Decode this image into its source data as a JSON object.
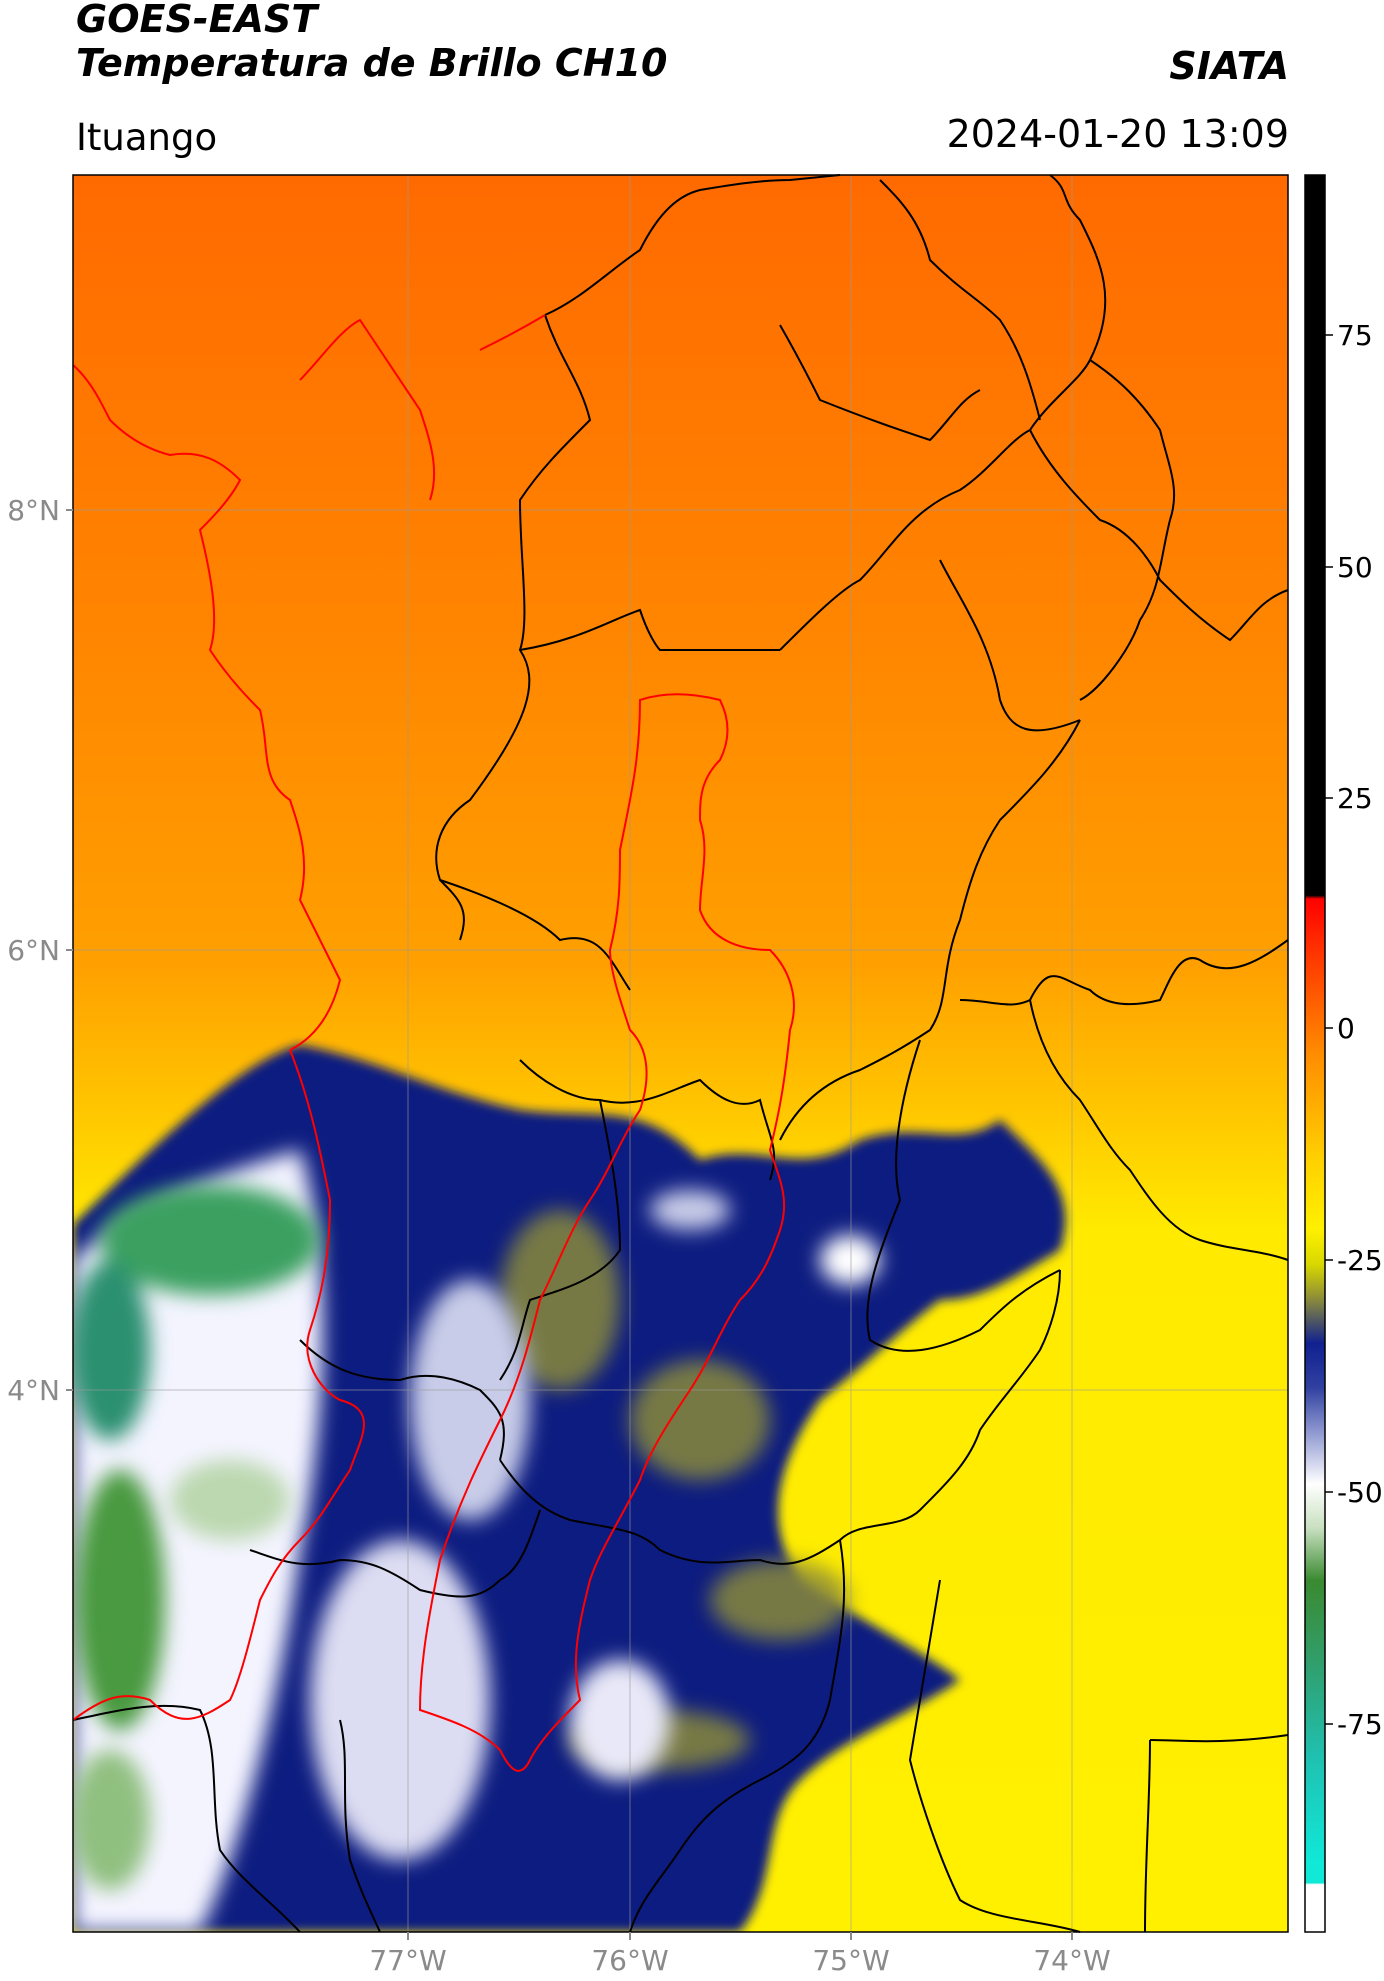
{
  "header": {
    "title_line1": "GOES-EAST",
    "title_line2": "Temperatura de Brillo CH10",
    "agency": "SIATA",
    "region": "Ituango",
    "timestamp": "2024-01-20 13:09"
  },
  "map": {
    "lat_ticks": [
      "8°N",
      "6°N",
      "4°N"
    ],
    "lon_ticks": [
      "77°W",
      "76°W",
      "75°W",
      "74°W"
    ]
  },
  "colorbar": {
    "tick_labels": [
      "75",
      "50",
      "25",
      "0",
      "-25",
      "-50",
      "-75"
    ],
    "colors": {
      "black": "#000000",
      "red": "#ff0000",
      "orange": "#ff7f00",
      "yellow": "#ffee00",
      "olive": "#8a8a3a",
      "navy": "#101a80",
      "white": "#ffffff",
      "green": "#3a8a30",
      "cyan": "#10e0d0"
    }
  }
}
